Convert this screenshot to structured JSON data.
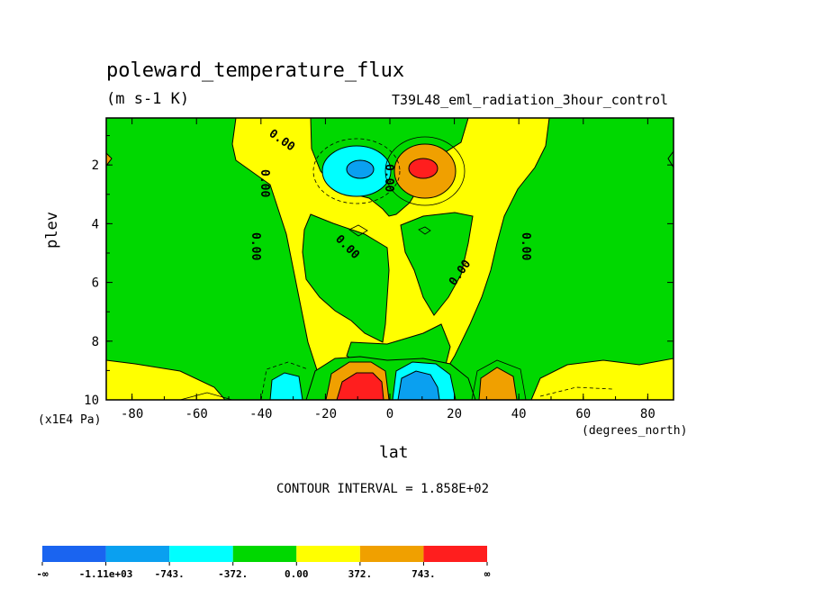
{
  "chart_data": {
    "type": "heatmap",
    "title": "poleward_temperature_flux",
    "units": "(m s-1 K)",
    "run": "T39L48_eml_radiation_3hour_control",
    "xlabel": "lat",
    "xunit": "(degrees_north)",
    "ylabel": "plev",
    "yunit": "(x1E4 Pa)",
    "xlim": [
      -88,
      88
    ],
    "ylim": [
      10,
      0.4
    ],
    "x_ticks": [
      "-80",
      "-60",
      "-40",
      "-20",
      "0",
      "20",
      "40",
      "60",
      "80"
    ],
    "y_ticks": [
      "2",
      "4",
      "6",
      "8",
      "10"
    ],
    "contour_interval_text": "CONTOUR INTERVAL = 1.858E+02",
    "contour_interval": 185.8,
    "contour_labels": [
      "0.00",
      "0.00",
      "0.00",
      "0.00",
      "0.00",
      "0.00",
      "0.00"
    ],
    "colorbar": {
      "labels": [
        "-∞",
        "-1.11e+03",
        "-743.",
        "-372.",
        "0.00",
        "372.",
        "743.",
        "∞"
      ],
      "colors": [
        "#1a64f0",
        "#0aa0f0",
        "#00ffff",
        "#00d800",
        "#ffff00",
        "#f0a000",
        "#ff1e1e"
      ]
    },
    "features": [
      {
        "region": "upper level, 10°S",
        "lat": -8,
        "plev": 2.0,
        "sign": "negative",
        "peak": -800
      },
      {
        "region": "upper level, 10°N",
        "lat": 10,
        "plev": 2.0,
        "sign": "positive",
        "peak": 900
      },
      {
        "region": "near surface, 5°S",
        "lat": -6,
        "plev": 9.6,
        "sign": "positive",
        "peak": 1200
      },
      {
        "region": "near surface, 8°N",
        "lat": 8,
        "plev": 9.6,
        "sign": "negative",
        "peak": -1200
      },
      {
        "region": "near surface, 30°S",
        "lat": -33,
        "plev": 9.7,
        "sign": "negative",
        "peak": -500
      },
      {
        "region": "near surface, 33°N",
        "lat": 33,
        "plev": 9.7,
        "sign": "positive",
        "peak": 500
      }
    ]
  }
}
